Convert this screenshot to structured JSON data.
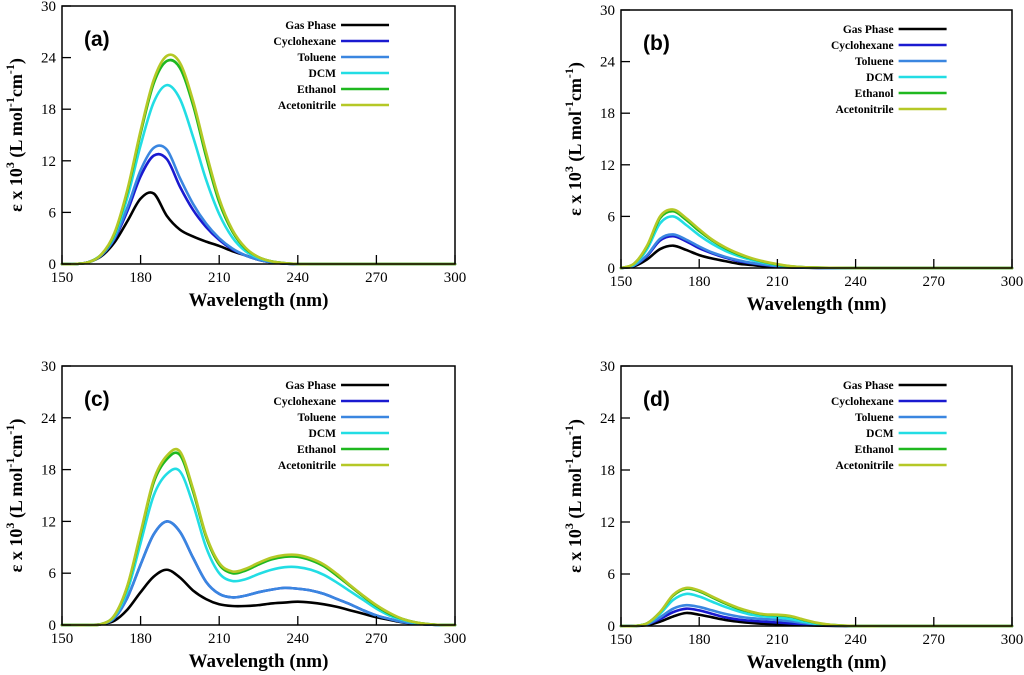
{
  "chart_data": [
    {
      "type": "line",
      "panel_label": "(a)",
      "xlabel": "Wavelength (nm)",
      "ylabel_parts": [
        "ε x 10",
        "3",
        " (L mol",
        "-1",
        "cm",
        "-1",
        ")"
      ],
      "xlim": [
        150,
        300
      ],
      "ylim": [
        0,
        30
      ],
      "xticks": [
        150,
        180,
        210,
        240,
        270,
        300
      ],
      "yticks": [
        0,
        6,
        12,
        18,
        24,
        30
      ],
      "legend_position": "top-right",
      "x": [
        150,
        155,
        160,
        165,
        170,
        175,
        180,
        185,
        190,
        195,
        200,
        205,
        210,
        215,
        220,
        225,
        230,
        235,
        240,
        245,
        250,
        260,
        270,
        280,
        290,
        300
      ],
      "series": [
        {
          "name": "Gas Phase",
          "color": "#000000",
          "values": [
            0,
            0,
            0.2,
            0.9,
            2.5,
            5.0,
            7.6,
            8.2,
            5.6,
            4.0,
            3.2,
            2.6,
            2.1,
            1.5,
            1.0,
            0.5,
            0.2,
            0.05,
            0,
            0,
            0,
            0,
            0,
            0,
            0,
            0
          ]
        },
        {
          "name": "Cyclohexane",
          "color": "#1a1ad0",
          "values": [
            0,
            0,
            0.2,
            1.0,
            2.9,
            6.2,
            10.2,
            12.6,
            12.2,
            9.0,
            6.3,
            4.3,
            2.8,
            1.7,
            1.0,
            0.5,
            0.2,
            0.05,
            0,
            0,
            0,
            0,
            0,
            0,
            0,
            0
          ]
        },
        {
          "name": "Toluene",
          "color": "#3a86e0",
          "values": [
            0,
            0,
            0.2,
            1.0,
            3.0,
            6.6,
            10.9,
            13.5,
            13.3,
            10.0,
            7.0,
            4.7,
            3.0,
            1.8,
            1.0,
            0.5,
            0.2,
            0.05,
            0,
            0,
            0,
            0,
            0,
            0,
            0,
            0
          ]
        },
        {
          "name": "DCM",
          "color": "#22dde4",
          "values": [
            0,
            0,
            0.2,
            1.1,
            3.3,
            7.8,
            13.8,
            18.8,
            20.8,
            19.2,
            14.8,
            9.8,
            5.8,
            3.1,
            1.5,
            0.7,
            0.3,
            0.1,
            0,
            0,
            0,
            0,
            0,
            0,
            0,
            0
          ]
        },
        {
          "name": "Ethanol",
          "color": "#1fb81f",
          "values": [
            0,
            0,
            0.2,
            1.1,
            3.5,
            8.5,
            15.2,
            21.0,
            23.6,
            22.8,
            18.5,
            12.5,
            7.2,
            3.8,
            1.8,
            0.8,
            0.3,
            0.1,
            0,
            0,
            0,
            0,
            0,
            0,
            0,
            0
          ]
        },
        {
          "name": "Acetonitrile",
          "color": "#b5c826",
          "values": [
            0,
            0,
            0.2,
            1.1,
            3.6,
            8.7,
            15.5,
            21.4,
            24.2,
            23.4,
            19.0,
            13.0,
            7.6,
            4.0,
            1.9,
            0.8,
            0.3,
            0.1,
            0,
            0,
            0,
            0,
            0,
            0,
            0,
            0
          ]
        }
      ]
    },
    {
      "type": "line",
      "panel_label": "(b)",
      "xlabel": "Wavelength (nm)",
      "ylabel_parts": [
        "ε x 10",
        "3",
        " (L mol",
        "-1",
        "cm",
        "-1",
        ")"
      ],
      "xlim": [
        150,
        300
      ],
      "ylim": [
        0,
        30
      ],
      "xticks": [
        150,
        180,
        210,
        240,
        270,
        300
      ],
      "yticks": [
        0,
        6,
        12,
        18,
        24,
        30
      ],
      "legend_position": "top-right",
      "x": [
        150,
        155,
        160,
        165,
        170,
        175,
        180,
        185,
        190,
        195,
        200,
        205,
        210,
        215,
        220,
        230,
        240,
        250,
        260,
        270,
        280,
        290,
        300
      ],
      "series": [
        {
          "name": "Gas Phase",
          "color": "#000000",
          "values": [
            0,
            0.2,
            1.0,
            2.2,
            2.6,
            2.1,
            1.5,
            1.1,
            0.8,
            0.5,
            0.35,
            0.2,
            0.12,
            0.06,
            0.03,
            0,
            0,
            0,
            0,
            0,
            0,
            0,
            0
          ]
        },
        {
          "name": "Cyclohexane",
          "color": "#1a1ad0",
          "values": [
            0,
            0.3,
            1.4,
            3.2,
            3.7,
            3.1,
            2.3,
            1.7,
            1.2,
            0.8,
            0.55,
            0.35,
            0.2,
            0.1,
            0.05,
            0,
            0,
            0,
            0,
            0,
            0,
            0,
            0
          ]
        },
        {
          "name": "Toluene",
          "color": "#3a86e0",
          "values": [
            0,
            0.3,
            1.5,
            3.4,
            3.9,
            3.3,
            2.5,
            1.8,
            1.3,
            0.9,
            0.6,
            0.4,
            0.22,
            0.1,
            0.05,
            0,
            0,
            0,
            0,
            0,
            0,
            0,
            0
          ]
        },
        {
          "name": "DCM",
          "color": "#22dde4",
          "values": [
            0,
            0.4,
            2.2,
            5.2,
            6.0,
            5.0,
            3.8,
            2.8,
            2.0,
            1.4,
            0.95,
            0.6,
            0.35,
            0.18,
            0.08,
            0.02,
            0,
            0,
            0,
            0,
            0,
            0,
            0
          ]
        },
        {
          "name": "Ethanol",
          "color": "#1fb81f",
          "values": [
            0,
            0.5,
            2.5,
            5.8,
            6.6,
            5.6,
            4.3,
            3.2,
            2.3,
            1.6,
            1.1,
            0.7,
            0.4,
            0.2,
            0.1,
            0.03,
            0,
            0,
            0,
            0,
            0,
            0,
            0
          ]
        },
        {
          "name": "Acetonitrile",
          "color": "#b5c826",
          "values": [
            0,
            0.5,
            2.6,
            6.0,
            6.8,
            5.8,
            4.5,
            3.3,
            2.4,
            1.7,
            1.15,
            0.75,
            0.45,
            0.22,
            0.1,
            0.03,
            0,
            0,
            0,
            0,
            0,
            0,
            0
          ]
        }
      ]
    },
    {
      "type": "line",
      "panel_label": "(c)",
      "xlabel": "Wavelength (nm)",
      "ylabel_parts": [
        "ε x 10",
        "3",
        " (L mol",
        "-1",
        "cm",
        "-1",
        ")"
      ],
      "xlim": [
        150,
        300
      ],
      "ylim": [
        0,
        30
      ],
      "xticks": [
        150,
        180,
        210,
        240,
        270,
        300
      ],
      "yticks": [
        0,
        6,
        12,
        18,
        24,
        30
      ],
      "legend_position": "top-right",
      "x": [
        150,
        155,
        160,
        165,
        170,
        175,
        180,
        185,
        190,
        195,
        200,
        205,
        210,
        215,
        220,
        225,
        230,
        235,
        240,
        245,
        250,
        255,
        260,
        265,
        270,
        275,
        280,
        285,
        290,
        295,
        300
      ],
      "series": [
        {
          "name": "Gas Phase",
          "color": "#000000",
          "values": [
            0,
            0,
            0,
            0.1,
            0.5,
            1.8,
            3.8,
            5.6,
            6.4,
            5.5,
            4.0,
            3.0,
            2.4,
            2.2,
            2.2,
            2.3,
            2.5,
            2.6,
            2.7,
            2.6,
            2.4,
            2.1,
            1.7,
            1.3,
            0.9,
            0.6,
            0.3,
            0.15,
            0.05,
            0,
            0
          ]
        },
        {
          "name": "Cyclohexane",
          "color": "#1a1ad0",
          "values": [
            0,
            0,
            0,
            0.1,
            0.8,
            3.2,
            7.0,
            10.5,
            12.0,
            10.8,
            7.8,
            5.0,
            3.6,
            3.2,
            3.4,
            3.8,
            4.1,
            4.3,
            4.2,
            4.0,
            3.6,
            3.0,
            2.4,
            1.7,
            1.1,
            0.7,
            0.35,
            0.15,
            0.05,
            0,
            0
          ]
        },
        {
          "name": "Toluene",
          "color": "#3a86e0",
          "values": [
            0,
            0,
            0,
            0.1,
            0.8,
            3.2,
            7.0,
            10.5,
            12.0,
            10.8,
            7.8,
            5.0,
            3.6,
            3.2,
            3.4,
            3.8,
            4.1,
            4.3,
            4.2,
            4.0,
            3.6,
            3.0,
            2.4,
            1.7,
            1.1,
            0.7,
            0.35,
            0.15,
            0.05,
            0,
            0
          ]
        },
        {
          "name": "DCM",
          "color": "#22dde4",
          "values": [
            0,
            0,
            0,
            0.1,
            1.0,
            4.0,
            9.5,
            15.0,
            17.5,
            17.8,
            14.0,
            9.0,
            6.0,
            5.1,
            5.3,
            5.9,
            6.4,
            6.7,
            6.7,
            6.4,
            5.8,
            4.9,
            3.9,
            2.9,
            1.9,
            1.1,
            0.6,
            0.25,
            0.1,
            0,
            0
          ]
        },
        {
          "name": "Ethanol",
          "color": "#1fb81f",
          "values": [
            0,
            0,
            0,
            0.1,
            1.1,
            4.5,
            10.5,
            16.5,
            19.2,
            19.7,
            15.5,
            10.2,
            7.0,
            6.0,
            6.3,
            7.0,
            7.6,
            7.9,
            7.9,
            7.5,
            6.8,
            5.7,
            4.5,
            3.3,
            2.2,
            1.3,
            0.7,
            0.3,
            0.1,
            0,
            0
          ]
        },
        {
          "name": "Acetonitrile",
          "color": "#b5c826",
          "values": [
            0,
            0,
            0,
            0.1,
            1.1,
            4.6,
            10.7,
            16.8,
            19.6,
            20.1,
            15.8,
            10.4,
            7.2,
            6.2,
            6.5,
            7.2,
            7.8,
            8.1,
            8.1,
            7.7,
            7.0,
            5.9,
            4.6,
            3.4,
            2.3,
            1.4,
            0.7,
            0.3,
            0.1,
            0,
            0
          ]
        }
      ]
    },
    {
      "type": "line",
      "panel_label": "(d)",
      "xlabel": "Wavelength (nm)",
      "ylabel_parts": [
        "ε x 10",
        "3",
        " (L mol",
        "-1",
        "cm",
        "-1",
        ")"
      ],
      "xlim": [
        150,
        300
      ],
      "ylim": [
        0,
        30
      ],
      "xticks": [
        150,
        180,
        210,
        240,
        270,
        300
      ],
      "yticks": [
        0,
        6,
        12,
        18,
        24,
        30
      ],
      "legend_position": "top-right",
      "x": [
        150,
        155,
        160,
        165,
        170,
        175,
        180,
        185,
        190,
        195,
        200,
        205,
        210,
        215,
        220,
        225,
        230,
        235,
        240,
        250,
        260,
        270,
        280,
        290,
        300
      ],
      "series": [
        {
          "name": "Gas Phase",
          "color": "#000000",
          "values": [
            0,
            0,
            0.1,
            0.5,
            1.1,
            1.5,
            1.3,
            1.0,
            0.7,
            0.5,
            0.35,
            0.25,
            0.2,
            0.15,
            0.1,
            0.05,
            0.02,
            0,
            0,
            0,
            0,
            0,
            0,
            0,
            0
          ]
        },
        {
          "name": "Cyclohexane",
          "color": "#1a1ad0",
          "values": [
            0,
            0,
            0.2,
            0.8,
            1.6,
            2.0,
            1.8,
            1.4,
            1.0,
            0.75,
            0.6,
            0.5,
            0.4,
            0.3,
            0.2,
            0.1,
            0.05,
            0.02,
            0,
            0,
            0,
            0,
            0,
            0,
            0
          ]
        },
        {
          "name": "Toluene",
          "color": "#3a86e0",
          "values": [
            0,
            0,
            0.2,
            1.0,
            2.0,
            2.4,
            2.2,
            1.8,
            1.4,
            1.1,
            0.9,
            0.8,
            0.7,
            0.55,
            0.35,
            0.18,
            0.08,
            0.03,
            0,
            0,
            0,
            0,
            0,
            0,
            0
          ]
        },
        {
          "name": "DCM",
          "color": "#22dde4",
          "values": [
            0,
            0,
            0.3,
            1.4,
            3.0,
            3.7,
            3.4,
            2.8,
            2.2,
            1.7,
            1.3,
            1.1,
            1.0,
            0.8,
            0.5,
            0.25,
            0.1,
            0.04,
            0,
            0,
            0,
            0,
            0,
            0,
            0
          ]
        },
        {
          "name": "Ethanol",
          "color": "#1fb81f",
          "values": [
            0,
            0,
            0.3,
            1.6,
            3.5,
            4.3,
            4.0,
            3.3,
            2.6,
            2.0,
            1.6,
            1.3,
            1.25,
            1.1,
            0.7,
            0.35,
            0.15,
            0.05,
            0,
            0,
            0,
            0,
            0,
            0,
            0
          ]
        },
        {
          "name": "Acetonitrile",
          "color": "#b5c826",
          "values": [
            0,
            0,
            0.3,
            1.6,
            3.6,
            4.4,
            4.1,
            3.4,
            2.7,
            2.1,
            1.65,
            1.35,
            1.3,
            1.15,
            0.75,
            0.38,
            0.16,
            0.05,
            0,
            0,
            0,
            0,
            0,
            0,
            0
          ]
        }
      ]
    }
  ]
}
